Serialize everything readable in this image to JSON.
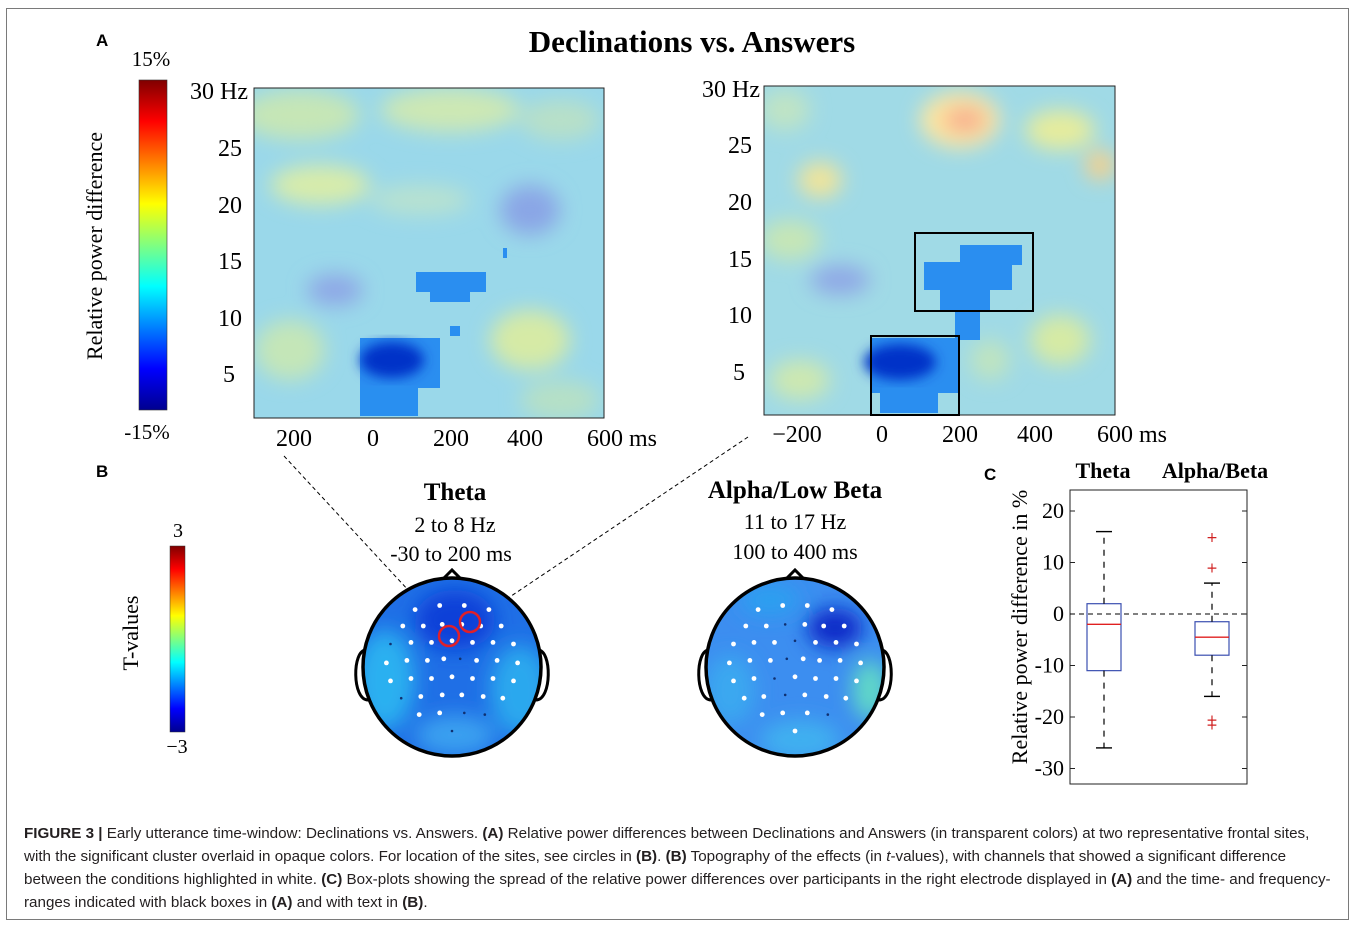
{
  "panel_a": {
    "letter": "A",
    "title": "Declinations vs. Answers",
    "colorbar": {
      "top_label": "15%",
      "bottom_label": "-15%",
      "axis_label": "Relative power difference"
    },
    "left_plot": {
      "y_ticks": [
        "30 Hz",
        "25",
        "20",
        "15",
        "10",
        "5"
      ],
      "x_ticks": [
        "200",
        "0",
        "200",
        "400",
        "600 ms"
      ]
    },
    "right_plot": {
      "y_ticks": [
        "30 Hz",
        "25",
        "20",
        "15",
        "10",
        "5"
      ],
      "x_ticks": [
        "−200",
        "0",
        "200",
        "400",
        "600 ms"
      ]
    }
  },
  "panel_b": {
    "letter": "B",
    "colorbar": {
      "top_label": "3",
      "bottom_label": "−3",
      "axis_label": "T-values"
    },
    "theta": {
      "title": "Theta",
      "freq": "2 to 8 Hz",
      "time": "-30 to 200 ms"
    },
    "alpha": {
      "title": "Alpha/Low Beta",
      "freq": "11 to 17 Hz",
      "time": "100 to 400 ms"
    }
  },
  "panel_c": {
    "letter": "C",
    "ylabel": "Relative power difference in %",
    "categories": [
      "Theta",
      "Alpha/Beta"
    ],
    "y_ticks": [
      "20",
      "10",
      "0",
      "-10",
      "-20",
      "-30"
    ]
  },
  "chart_data": {
    "type": "box",
    "title": "",
    "ylabel": "Relative power difference in %",
    "ylim": [
      -33,
      24
    ],
    "categories": [
      "Theta",
      "Alpha/Beta"
    ],
    "series": [
      {
        "name": "Theta",
        "whisker_low": -26,
        "q1": -11,
        "median": -2,
        "q3": 2,
        "whisker_high": 16,
        "outliers": []
      },
      {
        "name": "Alpha/Beta",
        "whisker_low": -16,
        "q1": -8,
        "median": -4.5,
        "q3": -1.5,
        "whisker_high": 6,
        "outliers": [
          15,
          9,
          -20.5,
          -21.5
        ]
      }
    ],
    "reference_line": 0
  },
  "caption": {
    "label": "FIGURE 3 |",
    "t1": " Early utterance time-window: Declinations vs. Answers. ",
    "a1": "(A)",
    "t2": " Relative power differences between Declinations and Answers (in transparent colors) at two representative frontal sites, with the significant cluster overlaid in opaque colors. For location of the sites, see circles in ",
    "b1": "(B)",
    "t3": ". ",
    "b2": "(B)",
    "t4": " Topography of the effects (in ",
    "tval": "t",
    "t5": "-values), with channels that showed a significant difference between the conditions highlighted in white. ",
    "c1": "(C)",
    "t6": " Box-plots showing the spread of the relative power differences over participants in the right electrode displayed in ",
    "a2": "(A)",
    "t7": " and the time- and frequency-ranges indicated with black boxes in ",
    "a3": "(A)",
    "t8": " and with text in ",
    "b3": "(B)",
    "t9": "."
  }
}
